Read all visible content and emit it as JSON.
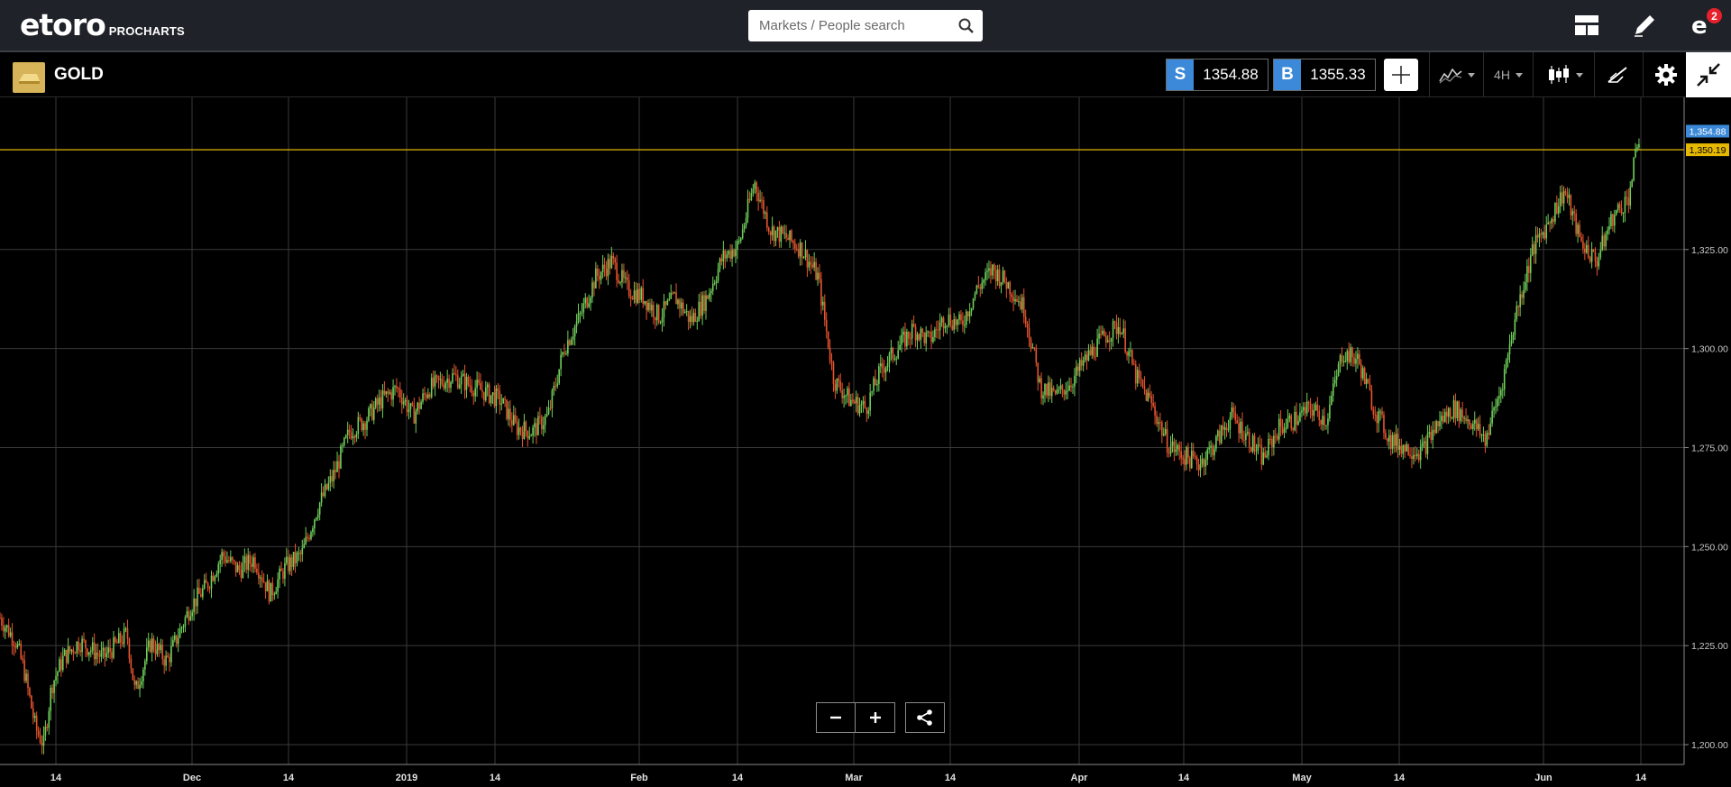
{
  "app": {
    "logo_text": "etoro",
    "logo_sub": "PROCHARTS"
  },
  "search": {
    "placeholder": "Markets / People search",
    "icon": "search-icon"
  },
  "top_icons": {
    "layout": "layout-grid-icon",
    "draw": "pencil-icon",
    "notifications": "etoro-e-icon",
    "notification_count": "2"
  },
  "instrument": {
    "name": "GOLD",
    "icon": "gold-bar-icon",
    "sell_label": "S",
    "sell_price": "1354.88",
    "buy_label": "B",
    "buy_price": "1355.33"
  },
  "toolbar": {
    "timeframe": "4H",
    "tools": [
      "crosshair-icon",
      "indicators-icon",
      "timeframe-dropdown",
      "candlestick-icon",
      "drawing-tools-icon",
      "gear-icon",
      "collapse-icon"
    ]
  },
  "colors": {
    "bull": "#6fcf5a",
    "bear": "#e8542e",
    "sell_tag": "#3b89d8",
    "line_tag": "#e6b800",
    "grid": "#3a3a3a"
  },
  "chart_data": {
    "type": "candlestick",
    "symbol": "GOLD",
    "timeframe": "4H",
    "ylim": [
      1195,
      1360
    ],
    "y_ticks": [
      1200,
      1225,
      1250,
      1275,
      1300,
      1325
    ],
    "y_tick_labels": [
      "1,200.00",
      "1,225.00",
      "1,250.00",
      "1,275.00",
      "1,300.00",
      "1,325.00"
    ],
    "x_tick_labels": [
      "14",
      "Dec",
      "14",
      "2019",
      "14",
      "Feb",
      "14",
      "Mar",
      "14",
      "Apr",
      "14",
      "May",
      "14",
      "Jun",
      "14"
    ],
    "current_price": 1354.88,
    "current_price_label": "1,354.88",
    "horizontal_line": 1350.19,
    "horizontal_line_label": "1,350.19",
    "grid": true,
    "price_path": [
      [
        0,
        1232
      ],
      [
        2,
        1226
      ],
      [
        3,
        1219
      ],
      [
        4.5,
        1204
      ],
      [
        5.5,
        1200
      ],
      [
        6.5,
        1215
      ],
      [
        8,
        1222
      ],
      [
        10,
        1226
      ],
      [
        13,
        1222
      ],
      [
        16,
        1228
      ],
      [
        17,
        1213
      ],
      [
        19,
        1226
      ],
      [
        21,
        1221
      ],
      [
        24,
        1235
      ],
      [
        26,
        1240
      ],
      [
        28,
        1248
      ],
      [
        30,
        1244
      ],
      [
        32,
        1247
      ],
      [
        34,
        1238
      ],
      [
        36,
        1245
      ],
      [
        38,
        1248
      ],
      [
        40,
        1260
      ],
      [
        42,
        1268
      ],
      [
        44,
        1279
      ],
      [
        46,
        1282
      ],
      [
        48,
        1287
      ],
      [
        50,
        1290
      ],
      [
        52,
        1283
      ],
      [
        54,
        1290
      ],
      [
        57,
        1293
      ],
      [
        60,
        1290
      ],
      [
        63,
        1287
      ],
      [
        65,
        1280
      ],
      [
        67,
        1279
      ],
      [
        69,
        1283
      ],
      [
        71,
        1300
      ],
      [
        73,
        1308
      ],
      [
        75,
        1318
      ],
      [
        77,
        1322
      ],
      [
        79,
        1315
      ],
      [
        81,
        1313
      ],
      [
        83,
        1308
      ],
      [
        85,
        1313
      ],
      [
        87,
        1307
      ],
      [
        89,
        1313
      ],
      [
        91,
        1323
      ],
      [
        93,
        1326
      ],
      [
        95,
        1342
      ],
      [
        97,
        1330
      ],
      [
        99,
        1328
      ],
      [
        101,
        1325
      ],
      [
        103,
        1318
      ],
      [
        105,
        1292
      ],
      [
        107,
        1287
      ],
      [
        109,
        1285
      ],
      [
        111,
        1295
      ],
      [
        113,
        1300
      ],
      [
        115,
        1305
      ],
      [
        117,
        1302
      ],
      [
        119,
        1308
      ],
      [
        121,
        1306
      ],
      [
        123,
        1315
      ],
      [
        125,
        1320
      ],
      [
        127,
        1316
      ],
      [
        129,
        1310
      ],
      [
        131,
        1290
      ],
      [
        133,
        1288
      ],
      [
        135,
        1292
      ],
      [
        137,
        1298
      ],
      [
        139,
        1303
      ],
      [
        141,
        1306
      ],
      [
        143,
        1293
      ],
      [
        145,
        1286
      ],
      [
        147,
        1276
      ],
      [
        149,
        1273
      ],
      [
        151,
        1271
      ],
      [
        153,
        1276
      ],
      [
        155,
        1283
      ],
      [
        157,
        1278
      ],
      [
        159,
        1272
      ],
      [
        161,
        1280
      ],
      [
        163,
        1282
      ],
      [
        165,
        1285
      ],
      [
        167,
        1282
      ],
      [
        169,
        1299
      ],
      [
        171,
        1297
      ],
      [
        173,
        1285
      ],
      [
        175,
        1277
      ],
      [
        177,
        1275
      ],
      [
        179,
        1274
      ],
      [
        181,
        1281
      ],
      [
        183,
        1285
      ],
      [
        185,
        1282
      ],
      [
        187,
        1277
      ],
      [
        189,
        1290
      ],
      [
        191,
        1310
      ],
      [
        193,
        1325
      ],
      [
        195,
        1332
      ],
      [
        197,
        1340
      ],
      [
        199,
        1327
      ],
      [
        201,
        1322
      ],
      [
        203,
        1333
      ],
      [
        205,
        1338
      ],
      [
        206.5,
        1354.88
      ]
    ],
    "path_x_max": 210
  }
}
